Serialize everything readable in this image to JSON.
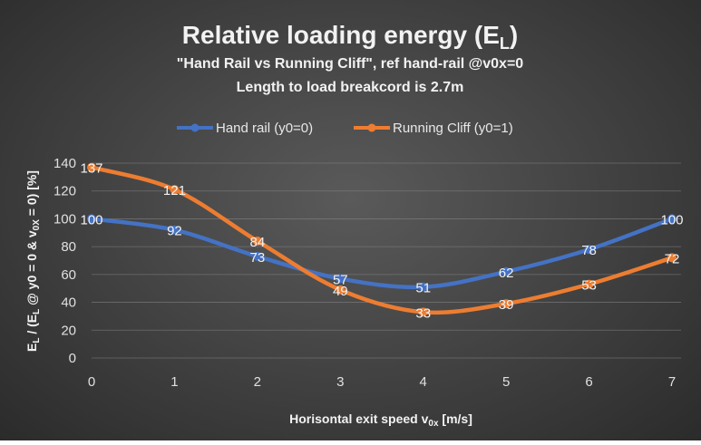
{
  "chart_data": {
    "type": "line",
    "title": {
      "main": "Relative loading energy (E",
      "sub": "L",
      "end": ")"
    },
    "subtitle_lines": [
      "\"Hand Rail vs Running Cliff\", ref hand-rail  @v0x=0",
      "Length to load breakcord is 2.7m"
    ],
    "xlabel": {
      "main": "Horisontal exit speed v",
      "sub": "0x",
      "end": " [m/s]"
    },
    "ylabel": {
      "p1": "E",
      "s1": "L",
      "p2": " / (E",
      "s2": "L",
      "p3": " @ y0 = 0 & v",
      "s3": "0X",
      "p4": " = 0) [%]"
    },
    "x": [
      0,
      1,
      2,
      3,
      4,
      5,
      6,
      7
    ],
    "xlim": [
      0,
      7
    ],
    "ylim": [
      0,
      140
    ],
    "yticks": [
      0,
      20,
      40,
      60,
      80,
      100,
      120,
      140
    ],
    "grid": true,
    "legend_position": "top",
    "series": [
      {
        "name": "Hand rail (y0=0)",
        "color": "#4472C4",
        "values": [
          100,
          92,
          73,
          57,
          51,
          62,
          78,
          100
        ]
      },
      {
        "name": "Running Cliff (y0=1)",
        "color": "#ED7D31",
        "values": [
          137,
          121,
          84,
          49,
          33,
          39,
          53,
          72
        ]
      }
    ]
  }
}
